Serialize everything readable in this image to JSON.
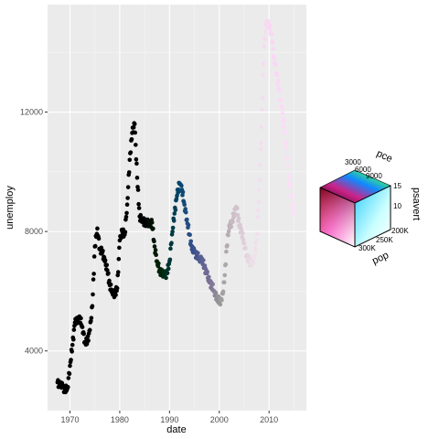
{
  "chart_data": {
    "type": "scatter",
    "title": "",
    "xlabel": "date",
    "ylabel": "unemploy",
    "xlim": [
      1965.5,
      2017.5
    ],
    "ylim": [
      2000,
      15600
    ],
    "x_ticks": [
      1970,
      1980,
      1990,
      2000,
      2010
    ],
    "y_ticks": [
      4000,
      8000,
      12000
    ],
    "x_tick_labels": [
      "1970",
      "1980",
      "1990",
      "2000",
      "2010"
    ],
    "y_tick_labels": [
      "4000",
      "8000",
      "12000"
    ],
    "grid": true,
    "legend_position": "right",
    "color_legend": {
      "type": "3d-color-cube",
      "variables": [
        "pce",
        "psavert",
        "pop"
      ],
      "pce_labels": [
        "3000",
        "6000",
        "9000"
      ],
      "psavert_labels": [
        "15",
        "10"
      ],
      "pop_labels": [
        "300K",
        "250K",
        "200K"
      ]
    },
    "series": [
      {
        "x": [
          1967.5,
          1968.0,
          1968.5,
          1969.0,
          1969.5,
          1970.0,
          1970.5,
          1971.0,
          1971.5,
          1972.0,
          1972.5,
          1973.0,
          1973.5,
          1974.0,
          1974.5,
          1975.0,
          1975.5,
          1976.0,
          1976.5,
          1977.0,
          1977.5,
          1978.0,
          1978.5,
          1979.0,
          1979.5,
          1980.0,
          1980.5,
          1981.0,
          1981.5,
          1982.0,
          1982.5,
          1983.0,
          1983.5,
          1984.0,
          1984.5,
          1985.0,
          1985.5,
          1986.0,
          1986.5,
          1987.0,
          1987.5,
          1988.0,
          1988.5,
          1989.0,
          1989.5,
          1990.0,
          1990.5,
          1991.0,
          1991.5,
          1992.0,
          1992.5,
          1993.0,
          1993.5,
          1994.0,
          1994.5,
          1995.0,
          1995.5,
          1996.0,
          1996.5,
          1997.0,
          1997.5,
          1998.0,
          1998.5,
          1999.0,
          1999.5,
          2000.0,
          2000.5,
          2001.0,
          2001.5,
          2002.0,
          2002.5,
          2003.0,
          2003.5,
          2004.0,
          2004.5,
          2005.0,
          2005.5,
          2006.0,
          2006.5,
          2007.0,
          2007.5,
          2008.0,
          2008.5,
          2009.0,
          2009.5,
          2010.0,
          2010.5,
          2011.0,
          2011.5,
          2012.0,
          2012.5,
          2013.0,
          2013.5,
          2014.0,
          2014.5,
          2015.0
        ],
        "y": [
          2950,
          2850,
          2800,
          2700,
          2750,
          3500,
          4200,
          4950,
          5000,
          5100,
          4800,
          4300,
          4300,
          4700,
          5500,
          7500,
          8100,
          7400,
          7300,
          7000,
          6700,
          6200,
          6000,
          5900,
          6100,
          7700,
          8000,
          7900,
          8900,
          10400,
          11300,
          11600,
          9800,
          8500,
          8400,
          8300,
          8300,
          8200,
          8300,
          7500,
          7000,
          6700,
          6600,
          6500,
          6600,
          7000,
          7900,
          8600,
          9200,
          9600,
          9400,
          8900,
          8400,
          7900,
          7400,
          7300,
          7200,
          7100,
          7100,
          6800,
          6600,
          6300,
          6200,
          6000,
          5800,
          5650,
          5700,
          6300,
          7500,
          8200,
          8300,
          8600,
          8800,
          8200,
          8000,
          7600,
          7200,
          7000,
          6900,
          7100,
          7700,
          9400,
          11500,
          14200,
          15000,
          14900,
          14600,
          13800,
          13300,
          12700,
          12200,
          11500,
          10800,
          9800,
          9200,
          8600
        ]
      }
    ]
  }
}
